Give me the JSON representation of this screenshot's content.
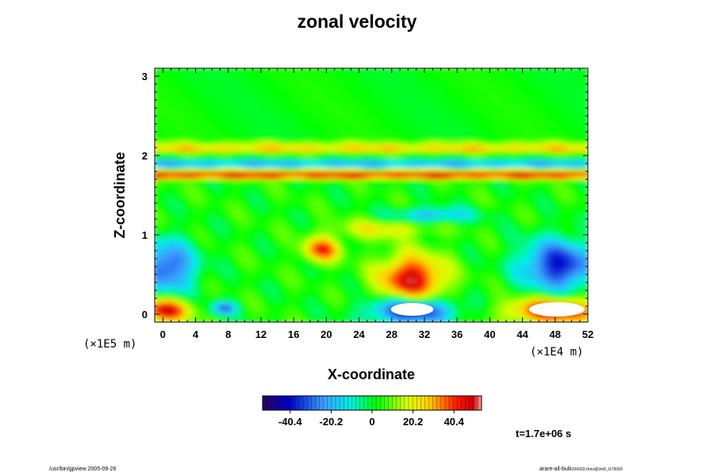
{
  "chart_data": {
    "type": "heatmap",
    "title": "zonal velocity",
    "xlabel": "X-coordinate",
    "ylabel": "Z-coordinate",
    "x_scale_note": "(×1E4 m)",
    "y_scale_note": "(×1E5 m)",
    "xlim": [
      -1,
      52
    ],
    "ylim": [
      -0.1,
      3.1
    ],
    "x_ticks": [
      "0",
      "4",
      "8",
      "12",
      "16",
      "20",
      "24",
      "28",
      "32",
      "36",
      "40",
      "44",
      "48",
      "52"
    ],
    "y_ticks": [
      "0",
      "1",
      "2",
      "3"
    ],
    "colorbar": {
      "range": [
        -54,
        54
      ],
      "tick_labels": [
        "-40.4",
        "-20.2",
        "0",
        "20.2",
        "40.4"
      ],
      "tick_values": [
        -40.4,
        -20.2,
        0,
        20.2,
        40.4
      ]
    },
    "bands": [
      {
        "z": 1.75,
        "width": 0.04,
        "value": 42
      },
      {
        "z": 1.8,
        "width": 0.04,
        "value": 18
      },
      {
        "z": 1.9,
        "width": 0.04,
        "value": -28
      },
      {
        "z": 2.08,
        "width": 0.04,
        "value": 22
      },
      {
        "z": 2.14,
        "width": 0.04,
        "value": 14
      }
    ],
    "blobs": [
      {
        "x": 30.5,
        "z": 0.45,
        "rx": 4.0,
        "rz": 0.3,
        "value": 46
      },
      {
        "x": 19.5,
        "z": 0.82,
        "rx": 2.2,
        "rz": 0.15,
        "value": 38
      },
      {
        "x": 48.5,
        "z": 0.62,
        "rx": 4.5,
        "rz": 0.32,
        "value": -42
      },
      {
        "x": 0.5,
        "z": 0.6,
        "rx": 3.5,
        "rz": 0.32,
        "value": -36
      },
      {
        "x": 30.5,
        "z": 0.05,
        "rx": 5.0,
        "rz": 0.16,
        "value": -48
      },
      {
        "x": 48.0,
        "z": 0.05,
        "rx": 5.5,
        "rz": 0.16,
        "value": 48
      },
      {
        "x": 0.3,
        "z": 0.05,
        "rx": 3.0,
        "rz": 0.15,
        "value": 46
      },
      {
        "x": 7.5,
        "z": 0.08,
        "rx": 1.5,
        "rz": 0.08,
        "value": -32
      },
      {
        "x": 33.0,
        "z": 1.25,
        "rx": 5.0,
        "rz": 0.09,
        "value": -24
      },
      {
        "x": 27.0,
        "z": 1.08,
        "rx": 6.0,
        "rz": 0.12,
        "value": 18
      }
    ],
    "saturated_regions": [
      {
        "x": 30.5,
        "z": 0.06,
        "rx": 2.6,
        "rz": 0.08
      },
      {
        "x": 48.2,
        "z": 0.06,
        "rx": 3.4,
        "rz": 0.09
      }
    ]
  },
  "time_label": "t=1.7e+06 s",
  "footer_left": "/usr/bin/gpview 2005-09-26",
  "footer_right_main": "arare-all-bulk",
  "footer_right_small": "200602-0rev@Vel0_t170000"
}
